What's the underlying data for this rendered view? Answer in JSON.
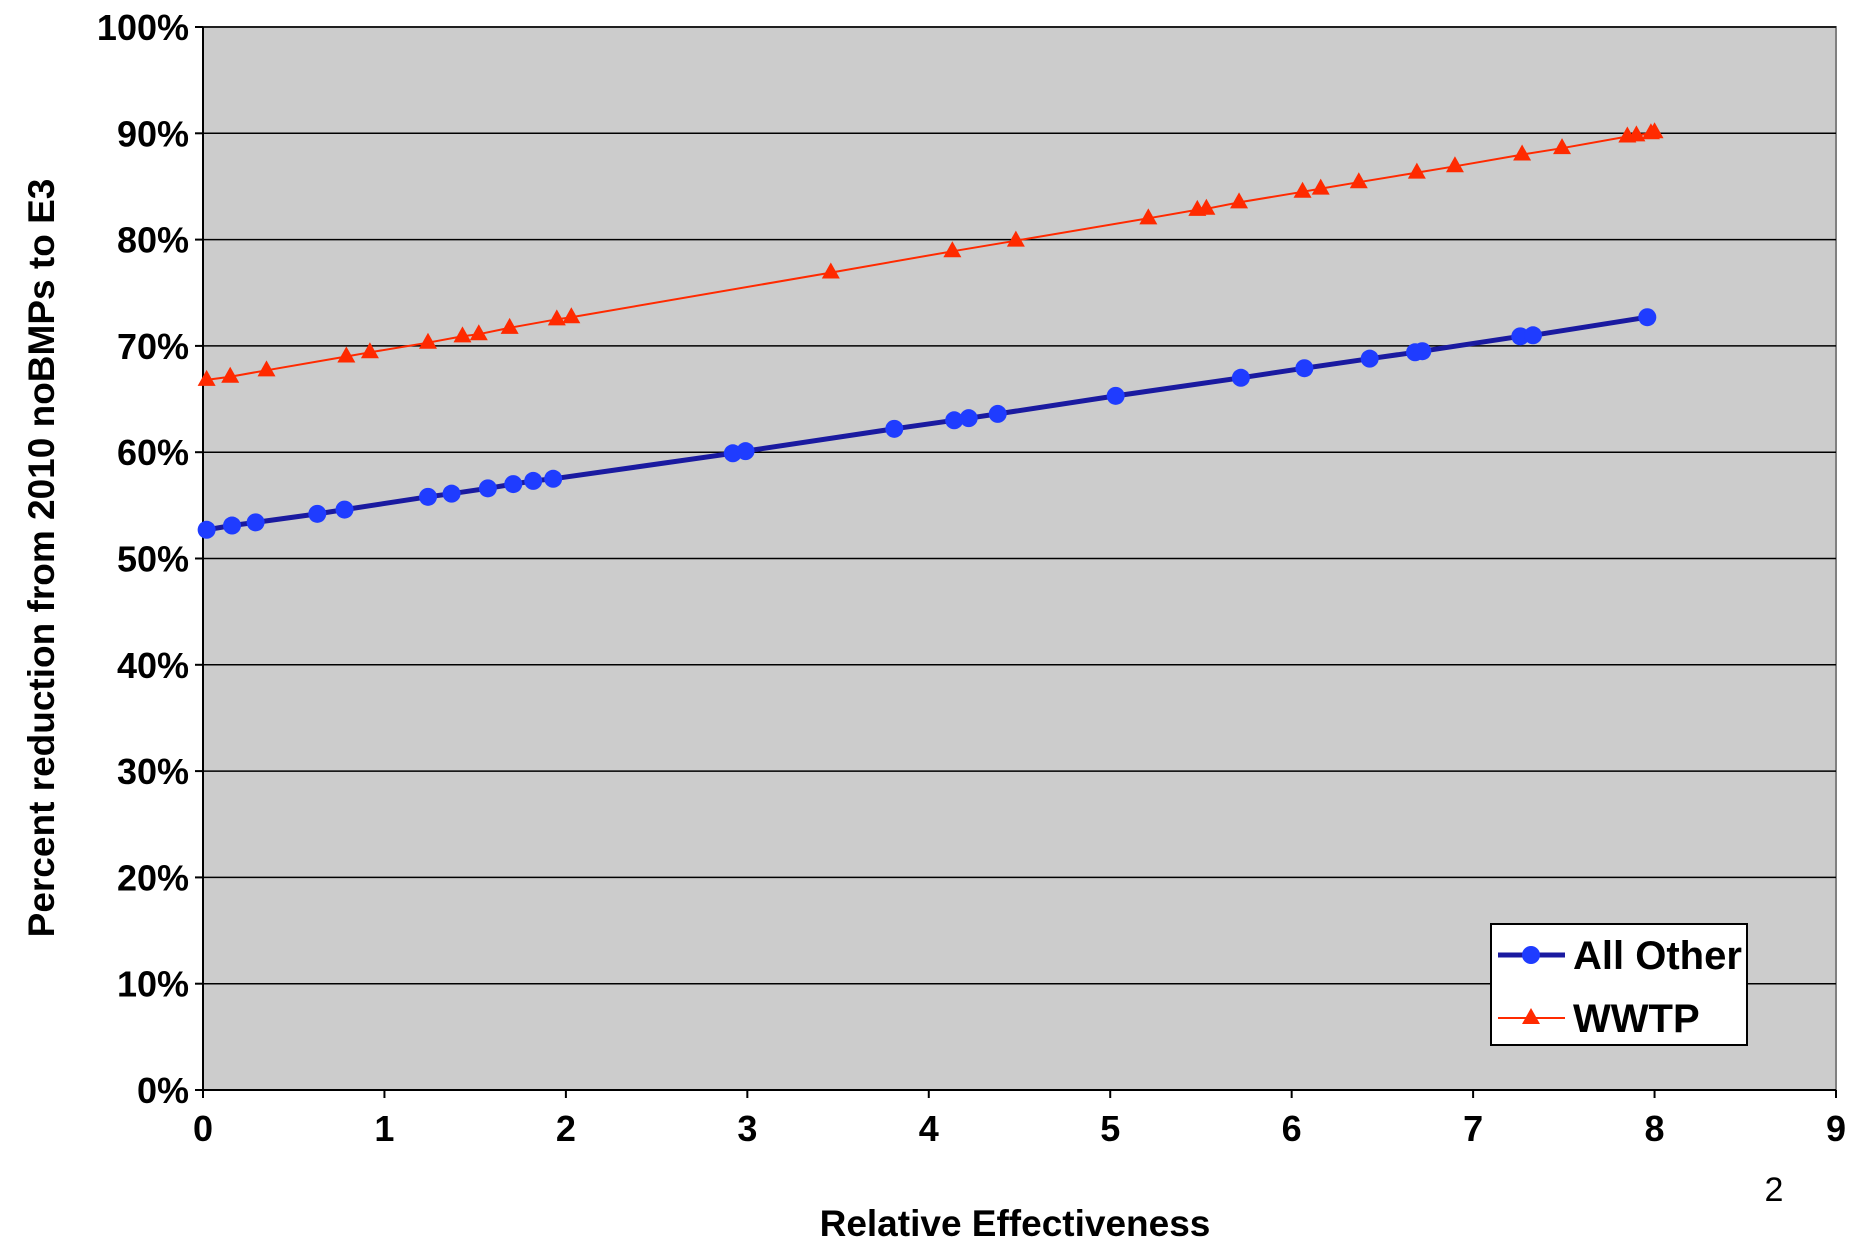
{
  "page_number": "2",
  "chart_data": {
    "type": "line",
    "title": "",
    "xlabel": "Relative Effectiveness",
    "ylabel": "Percent reduction from 2010 noBMPs to E3",
    "xlim": [
      0,
      9
    ],
    "ylim": [
      0,
      100
    ],
    "x_ticks": [
      "0",
      "1",
      "2",
      "3",
      "4",
      "5",
      "6",
      "7",
      "8",
      "9"
    ],
    "y_ticks": [
      "0%",
      "10%",
      "20%",
      "30%",
      "40%",
      "50%",
      "60%",
      "70%",
      "80%",
      "90%",
      "100%"
    ],
    "grid": "horizontal",
    "legend_position": "bottom-right",
    "plot_background": "#cccccc",
    "series": [
      {
        "name": "All Other",
        "color": "#1a1aa0",
        "marker": "circle",
        "marker_color": "#1f3cff",
        "points": [
          [
            0.02,
            52.7
          ],
          [
            0.16,
            53.1
          ],
          [
            0.29,
            53.4
          ],
          [
            0.63,
            54.2
          ],
          [
            0.78,
            54.6
          ],
          [
            1.24,
            55.8
          ],
          [
            1.37,
            56.1
          ],
          [
            1.57,
            56.6
          ],
          [
            1.71,
            57.0
          ],
          [
            1.82,
            57.3
          ],
          [
            1.93,
            57.5
          ],
          [
            2.92,
            59.9
          ],
          [
            2.99,
            60.1
          ],
          [
            3.81,
            62.2
          ],
          [
            4.14,
            63.0
          ],
          [
            4.22,
            63.2
          ],
          [
            4.38,
            63.6
          ],
          [
            5.03,
            65.3
          ],
          [
            5.72,
            67.0
          ],
          [
            6.07,
            67.9
          ],
          [
            6.43,
            68.8
          ],
          [
            6.68,
            69.4
          ],
          [
            6.72,
            69.5
          ],
          [
            7.26,
            70.9
          ],
          [
            7.33,
            71.0
          ],
          [
            7.96,
            72.7
          ]
        ]
      },
      {
        "name": "WWTP",
        "color": "#ff2a00",
        "marker": "triangle",
        "marker_color": "#ff2a00",
        "points": [
          [
            0.02,
            66.8
          ],
          [
            0.15,
            67.1
          ],
          [
            0.35,
            67.7
          ],
          [
            0.79,
            69.0
          ],
          [
            0.92,
            69.4
          ],
          [
            1.24,
            70.3
          ],
          [
            1.43,
            70.9
          ],
          [
            1.52,
            71.1
          ],
          [
            1.69,
            71.7
          ],
          [
            1.95,
            72.5
          ],
          [
            2.03,
            72.7
          ],
          [
            3.46,
            76.9
          ],
          [
            4.13,
            78.9
          ],
          [
            4.48,
            79.9
          ],
          [
            5.21,
            82.0
          ],
          [
            5.48,
            82.8
          ],
          [
            5.53,
            82.9
          ],
          [
            5.71,
            83.5
          ],
          [
            6.06,
            84.5
          ],
          [
            6.16,
            84.8
          ],
          [
            6.37,
            85.4
          ],
          [
            6.69,
            86.3
          ],
          [
            6.9,
            86.9
          ],
          [
            7.27,
            88.0
          ],
          [
            7.49,
            88.6
          ],
          [
            7.85,
            89.7
          ],
          [
            7.9,
            89.8
          ],
          [
            7.98,
            90.0
          ],
          [
            8.0,
            90.1
          ]
        ]
      }
    ]
  }
}
